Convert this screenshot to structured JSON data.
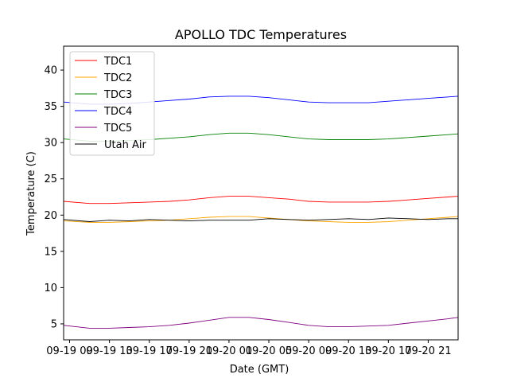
{
  "chart_data": {
    "type": "line",
    "title": "APOLLO TDC Temperatures",
    "xlabel": "Date (GMT)",
    "ylabel": "Temperature (C)",
    "ylim": [
      2.8,
      43.3
    ],
    "xlim": [
      -0.15,
      9.75
    ],
    "y_ticks": [
      5,
      10,
      15,
      20,
      25,
      30,
      35,
      40
    ],
    "x_ticks": [
      {
        "pos": 0,
        "label": "09-19 09"
      },
      {
        "pos": 1,
        "label": "09-19 13"
      },
      {
        "pos": 2,
        "label": "09-19 17"
      },
      {
        "pos": 3,
        "label": "09-19 21"
      },
      {
        "pos": 4,
        "label": "09-20 01"
      },
      {
        "pos": 5,
        "label": "09-20 05"
      },
      {
        "pos": 6,
        "label": "09-20 09"
      },
      {
        "pos": 7,
        "label": "09-20 13"
      },
      {
        "pos": 8,
        "label": "09-20 17"
      },
      {
        "pos": 9,
        "label": "09-20 21"
      }
    ],
    "legend_position": "top-left",
    "x": [
      -0.15,
      0.5,
      1.0,
      1.5,
      2.0,
      2.5,
      3.0,
      3.5,
      4.0,
      4.5,
      5.0,
      5.5,
      6.0,
      6.5,
      7.0,
      7.5,
      8.0,
      8.5,
      9.0,
      9.5,
      9.75
    ],
    "series": [
      {
        "name": "TDC1",
        "color": "#ff0000",
        "values": [
          21.9,
          21.6,
          21.6,
          21.7,
          21.8,
          21.9,
          22.1,
          22.4,
          22.6,
          22.6,
          22.4,
          22.2,
          21.9,
          21.8,
          21.8,
          21.8,
          21.9,
          22.1,
          22.3,
          22.5,
          22.6
        ]
      },
      {
        "name": "TDC2",
        "color": "#ffa500",
        "values": [
          19.2,
          19.0,
          19.0,
          19.1,
          19.2,
          19.3,
          19.5,
          19.7,
          19.8,
          19.8,
          19.6,
          19.4,
          19.2,
          19.1,
          19.0,
          19.0,
          19.1,
          19.3,
          19.5,
          19.7,
          19.8
        ]
      },
      {
        "name": "TDC3",
        "color": "#008000",
        "values": [
          30.5,
          30.2,
          30.2,
          30.3,
          30.4,
          30.6,
          30.8,
          31.1,
          31.3,
          31.3,
          31.1,
          30.8,
          30.5,
          30.4,
          30.4,
          30.4,
          30.5,
          30.7,
          30.9,
          31.1,
          31.2
        ]
      },
      {
        "name": "TDC4",
        "color": "#0000ff",
        "values": [
          35.6,
          35.3,
          35.3,
          35.4,
          35.6,
          35.8,
          36.0,
          36.3,
          36.4,
          36.4,
          36.2,
          35.9,
          35.6,
          35.5,
          35.5,
          35.5,
          35.7,
          35.9,
          36.1,
          36.3,
          36.4
        ]
      },
      {
        "name": "TDC5",
        "color": "#800080",
        "values": [
          4.8,
          4.4,
          4.4,
          4.5,
          4.6,
          4.8,
          5.1,
          5.5,
          5.9,
          5.9,
          5.6,
          5.2,
          4.8,
          4.6,
          4.6,
          4.7,
          4.8,
          5.1,
          5.4,
          5.7,
          5.9
        ]
      },
      {
        "name": "Utah Air",
        "color": "#000000",
        "values": [
          19.4,
          19.1,
          19.3,
          19.2,
          19.4,
          19.3,
          19.2,
          19.3,
          19.3,
          19.3,
          19.5,
          19.4,
          19.3,
          19.4,
          19.5,
          19.4,
          19.6,
          19.5,
          19.4,
          19.5,
          19.5
        ]
      }
    ]
  }
}
